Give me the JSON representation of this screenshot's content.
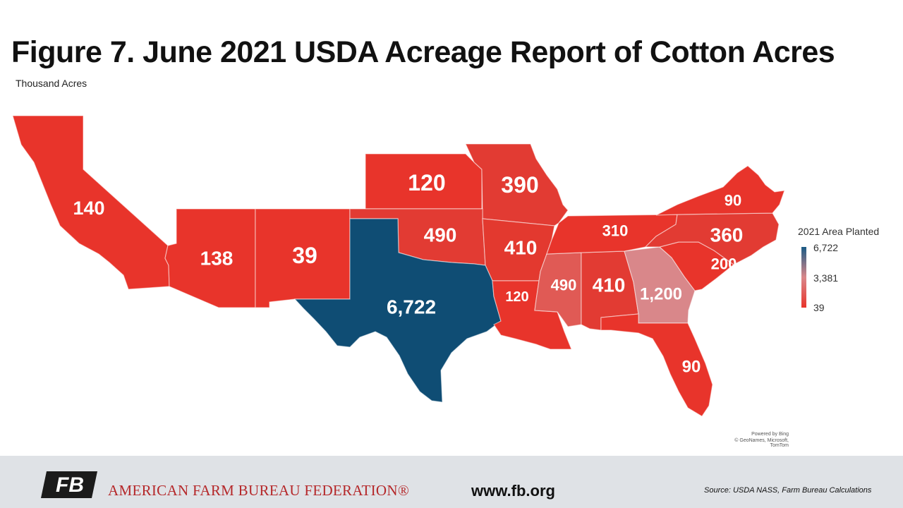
{
  "title": "Figure 7. June 2021 USDA Acreage Report of Cotton Acres",
  "subtitle": "Thousand Acres",
  "colors": {
    "low": "#e8342b",
    "mid": "#d9878a",
    "high": "#0f4d74",
    "footer_bg": "#dfe2e6",
    "brand_red": "#b5282a"
  },
  "states": [
    {
      "name": "California",
      "value": "140"
    },
    {
      "name": "Arizona",
      "value": "138"
    },
    {
      "name": "New Mexico",
      "value": "39"
    },
    {
      "name": "Texas",
      "value": "6,722"
    },
    {
      "name": "Kansas",
      "value": "120"
    },
    {
      "name": "Oklahoma",
      "value": "490"
    },
    {
      "name": "Missouri",
      "value": "390"
    },
    {
      "name": "Arkansas",
      "value": "410"
    },
    {
      "name": "Louisiana",
      "value": "120"
    },
    {
      "name": "Mississippi",
      "value": "490"
    },
    {
      "name": "Alabama",
      "value": "410"
    },
    {
      "name": "Georgia",
      "value": "1,200"
    },
    {
      "name": "Florida",
      "value": "90"
    },
    {
      "name": "South Carolina",
      "value": "200"
    },
    {
      "name": "North Carolina",
      "value": "360"
    },
    {
      "name": "Tennessee",
      "value": "310"
    },
    {
      "name": "Virginia",
      "value": "90"
    }
  ],
  "legend": {
    "title": "2021 Area Planted",
    "max": "6,722",
    "mid": "3,381",
    "min": "39"
  },
  "map_credit": {
    "line1": "Powered by Bing",
    "line2": "© GeoNames, Microsoft, TomTom"
  },
  "footer": {
    "logo_text": "FB",
    "organization": "AMERICAN FARM BUREAU FEDERATION®",
    "url": "www.fb.org",
    "source": "Source: USDA NASS, Farm Bureau Calculations"
  }
}
